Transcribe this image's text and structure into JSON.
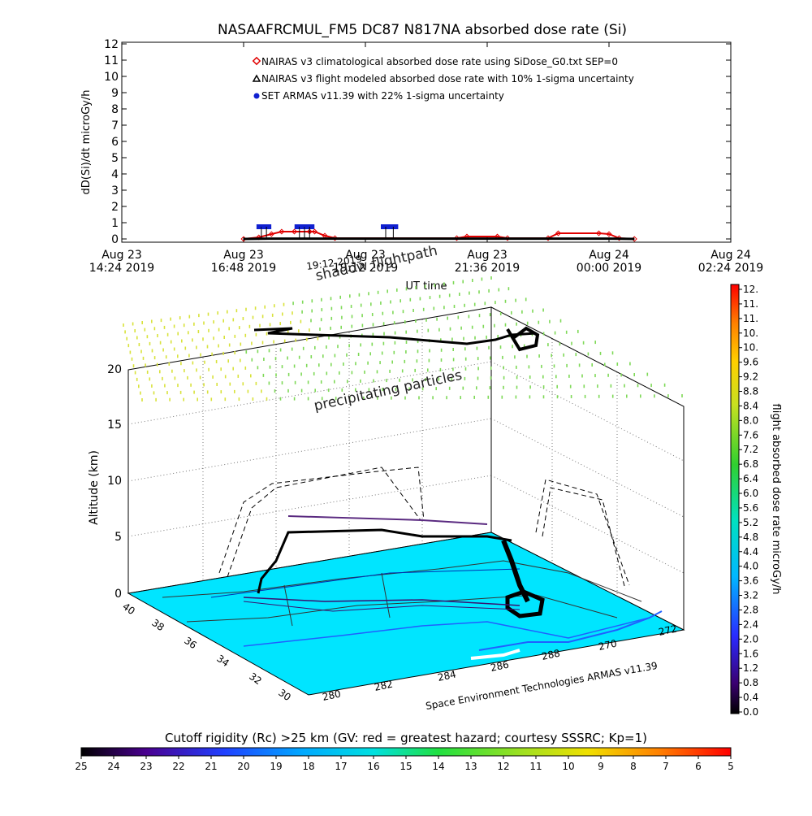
{
  "chart_data": [
    {
      "type": "line",
      "title": "NASAAFRCMUL_FM5 DC87 N817NA absorbed dose rate (Si)",
      "ylabel": "dD(Si)/dt microGy/h",
      "xlabel": "UT time",
      "ylim": [
        0,
        12
      ],
      "yticks": [
        "0",
        "1",
        "2",
        "3",
        "4",
        "5",
        "6",
        "7",
        "8",
        "9",
        "10",
        "11",
        "12"
      ],
      "x_tick_labels": [
        {
          "line1": "Aug 23",
          "line2": "14:24 2019"
        },
        {
          "line1": "Aug 23",
          "line2": "16:48 2019"
        },
        {
          "line1": "Aug 23",
          "line2": "19:12 2019"
        },
        {
          "line1": "Aug 23",
          "line2": "21:36 2019"
        },
        {
          "line1": "Aug 24",
          "line2": "00:00 2019"
        },
        {
          "line1": "Aug 24",
          "line2": "02:24 2019"
        }
      ],
      "x_range_hours": [
        14.4,
        26.4
      ],
      "legend": [
        {
          "label": "NAIRAS v3 climatological absorbed dose rate using SiDose_G0.txt SEP=0",
          "color": "#e00000",
          "symbol": "diamond"
        },
        {
          "label": "NAIRAS v3 flight modeled absorbed dose rate with 10% 1-sigma uncertainty",
          "color": "#000000",
          "symbol": "triangle"
        },
        {
          "label": "SET ARMAS v11.39 with 22% 1-sigma uncertainty",
          "color": "#1020d0",
          "symbol": "circle"
        }
      ],
      "legend_position": "top-center",
      "series": [
        {
          "name": "NAIRAS v3 climatological absorbed dose rate using SiDose_G0.txt SEP=0",
          "x": [
            16.8,
            17.1,
            17.35,
            17.55,
            17.8,
            18.1,
            18.2,
            18.4,
            18.6,
            21.0,
            21.2,
            21.8,
            22.0,
            22.8,
            23.0,
            23.8,
            24.0,
            24.2,
            24.5
          ],
          "y": [
            0.0,
            0.1,
            0.3,
            0.45,
            0.45,
            0.45,
            0.45,
            0.2,
            0.05,
            0.05,
            0.15,
            0.15,
            0.05,
            0.05,
            0.35,
            0.35,
            0.3,
            0.05,
            0.0
          ]
        },
        {
          "name": "NAIRAS v3 flight modeled absorbed dose rate with 10% 1-sigma uncertainty",
          "x": [
            16.8,
            17.3,
            18.6,
            21.0,
            22.0,
            23.0,
            24.0,
            24.5
          ],
          "y": [
            0.0,
            0.02,
            0.02,
            0.02,
            0.02,
            0.02,
            0.02,
            0.0
          ]
        },
        {
          "name": "SET ARMAS v11.39 with 22% 1-sigma uncertainty",
          "x": [
            17.15,
            17.25,
            17.9,
            18.0,
            18.1,
            19.6,
            19.75
          ],
          "y": [
            0.75,
            0.75,
            0.75,
            0.75,
            0.75,
            0.75,
            0.75
          ]
        }
      ]
    },
    {
      "type": "3d-map",
      "annotations": [
        "shadow flightpath",
        "precipitating particles",
        "Space Environment Technologies ARMAS v11.39"
      ],
      "overlap_label": "19:12 2019",
      "z_label": "Altitude (km)",
      "z_ticks": [
        "0",
        "5",
        "10",
        "15",
        "20"
      ],
      "lat_ticks": [
        "40",
        "38",
        "36",
        "34",
        "32",
        "30"
      ],
      "lon_ticks": [
        "280",
        "282",
        "284",
        "286",
        "288",
        "270",
        "272"
      ],
      "dose_colorbar": {
        "label": "flight absorbed dose rate microGy/h",
        "ticks": [
          "12.",
          "11.",
          "11.",
          "10.",
          "10.",
          "9.6",
          "9.2",
          "8.8",
          "8.4",
          "8.0",
          "7.6",
          "7.2",
          "6.8",
          "6.4",
          "6.0",
          "5.6",
          "5.2",
          "4.8",
          "4.4",
          "4.0",
          "3.6",
          "3.2",
          "2.8",
          "2.4",
          "2.0",
          "1.6",
          "1.2",
          "0.8",
          "0.4",
          "0.0"
        ],
        "range": [
          0,
          12
        ]
      },
      "rc_colorbar": {
        "label": "Cutoff rigidity (Rc) >25 km (GV: red = greatest hazard; courtesy SSSRC; Kp=1)",
        "ticks": [
          "25",
          "24",
          "23",
          "22",
          "21",
          "20",
          "19",
          "18",
          "17",
          "16",
          "15",
          "14",
          "13",
          "12",
          "11",
          "10",
          "9",
          "8",
          "7",
          "6",
          "5"
        ],
        "range": [
          25,
          5
        ]
      },
      "colors": {
        "map_sea": "#00e5ff",
        "particles_yellow": "#d8e23a",
        "particles_green": "#7ed957",
        "flight": "#000000",
        "coast": "#2060ff"
      }
    }
  ]
}
